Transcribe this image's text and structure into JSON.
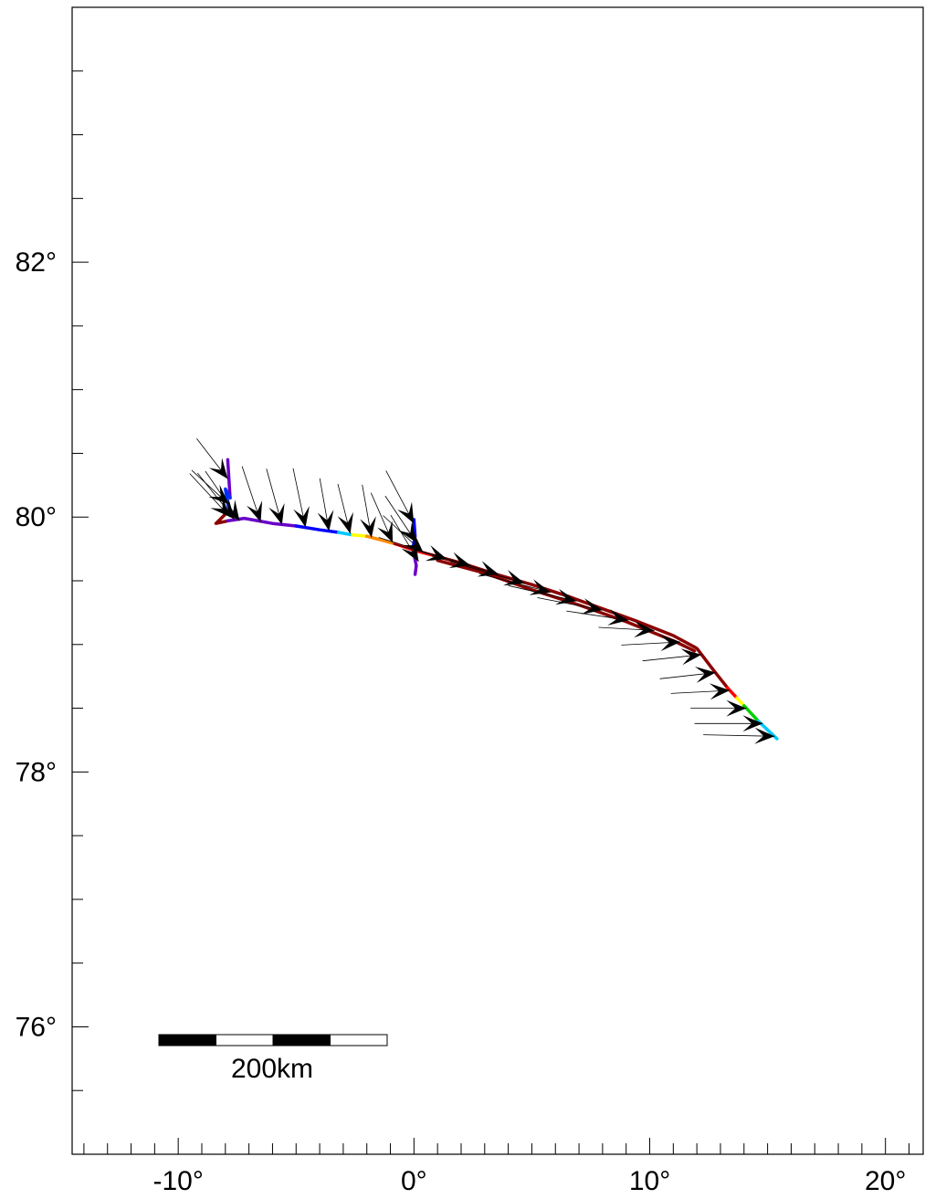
{
  "map": {
    "x_axis": {
      "unit": "°",
      "range": [
        -14.5,
        21.6
      ],
      "major_ticks": [
        -10,
        0,
        10,
        20
      ],
      "major_labels": [
        "-10°",
        "0°",
        "10°",
        "20°"
      ],
      "minor_step": 1
    },
    "y_axis": {
      "unit": "°",
      "range": [
        75.0,
        84.0
      ],
      "major_ticks": [
        76,
        78,
        80,
        82
      ],
      "major_labels": [
        "76°",
        "78°",
        "80°",
        "82°"
      ],
      "minor_step": 0.5
    },
    "scale_bar": {
      "label": "200km",
      "segments": 4,
      "colors": [
        "#000000",
        "#ffffff",
        "#000000",
        "#ffffff"
      ]
    },
    "track": {
      "color_scale": [
        "#8b0000",
        "#ff0000",
        "#ff8c00",
        "#ffff00",
        "#00d000",
        "#00c8ff",
        "#0000ff",
        "#6a00c8"
      ],
      "segments": [
        {
          "color": "#6a00c8",
          "points": [
            [
              -7.9,
              80.45
            ],
            [
              -7.85,
              80.3
            ],
            [
              -7.8,
              80.15
            ]
          ]
        },
        {
          "color": "#0030ff",
          "points": [
            [
              -7.8,
              80.15
            ],
            [
              -8.0,
              80.22
            ],
            [
              -7.85,
              80.05
            ]
          ]
        },
        {
          "color": "#8b0000",
          "points": [
            [
              -7.85,
              80.05
            ],
            [
              -8.4,
              79.95
            ],
            [
              -7.9,
              79.97
            ]
          ]
        },
        {
          "color": "#6a00c8",
          "points": [
            [
              -7.9,
              79.97
            ],
            [
              -7.2,
              79.99
            ],
            [
              -6.0,
              79.95
            ],
            [
              -5.0,
              79.93
            ]
          ]
        },
        {
          "color": "#0000ff",
          "points": [
            [
              -5.0,
              79.93
            ],
            [
              -4.0,
              79.9
            ],
            [
              -3.2,
              79.88
            ]
          ]
        },
        {
          "color": "#00c8ff",
          "points": [
            [
              -3.2,
              79.88
            ],
            [
              -2.6,
              79.86
            ]
          ]
        },
        {
          "color": "#ffff00",
          "points": [
            [
              -2.6,
              79.86
            ],
            [
              -2.0,
              79.85
            ]
          ]
        },
        {
          "color": "#ff8c00",
          "points": [
            [
              -2.0,
              79.85
            ],
            [
              -1.4,
              79.82
            ],
            [
              -0.8,
              79.79
            ]
          ]
        },
        {
          "color": "#0000ff",
          "points": [
            [
              0.0,
              79.98
            ],
            [
              0.05,
              79.85
            ],
            [
              -0.05,
              79.75
            ]
          ]
        },
        {
          "color": "#6a00c8",
          "points": [
            [
              -0.05,
              79.75
            ],
            [
              0.1,
              79.62
            ],
            [
              0.05,
              79.55
            ]
          ]
        },
        {
          "color": "#ff0000",
          "points": [
            [
              -0.8,
              79.79
            ],
            [
              0.0,
              79.74
            ],
            [
              0.8,
              79.7
            ]
          ]
        },
        {
          "color": "#8b0000",
          "points": [
            [
              0.8,
              79.7
            ],
            [
              2.0,
              79.64
            ],
            [
              3.5,
              79.55
            ],
            [
              5.0,
              79.47
            ],
            [
              6.5,
              79.38
            ],
            [
              8.0,
              79.28
            ],
            [
              9.5,
              79.18
            ],
            [
              11.0,
              79.07
            ],
            [
              12.0,
              78.97
            ],
            [
              12.7,
              78.8
            ],
            [
              13.3,
              78.66
            ]
          ]
        },
        {
          "color": "#8b0000",
          "points": [
            [
              1.0,
              79.66
            ],
            [
              3.0,
              79.56
            ],
            [
              5.0,
              79.43
            ],
            [
              7.0,
              79.31
            ],
            [
              9.0,
              79.18
            ],
            [
              11.0,
              79.03
            ],
            [
              11.9,
              78.95
            ]
          ]
        },
        {
          "color": "#ff0000",
          "points": [
            [
              13.3,
              78.66
            ],
            [
              13.7,
              78.58
            ]
          ]
        },
        {
          "color": "#ffff00",
          "points": [
            [
              13.7,
              78.58
            ],
            [
              14.0,
              78.52
            ]
          ]
        },
        {
          "color": "#00d000",
          "points": [
            [
              14.0,
              78.52
            ],
            [
              14.3,
              78.46
            ],
            [
              14.6,
              78.4
            ]
          ]
        },
        {
          "color": "#00c8ff",
          "points": [
            [
              14.6,
              78.4
            ],
            [
              15.0,
              78.33
            ],
            [
              15.4,
              78.26
            ]
          ]
        }
      ]
    },
    "wind_vectors": [
      {
        "lon": -7.9,
        "lat": 80.3,
        "u": 1.0,
        "v": -1.3
      },
      {
        "lon": -7.85,
        "lat": 80.1,
        "u": 1.2,
        "v": -1.1
      },
      {
        "lon": -7.8,
        "lat": 80.0,
        "u": 1.3,
        "v": -1.4
      },
      {
        "lon": -7.6,
        "lat": 79.98,
        "u": 1.2,
        "v": -1.5
      },
      {
        "lon": -7.4,
        "lat": 79.97,
        "u": 1.1,
        "v": -1.6
      },
      {
        "lon": -6.5,
        "lat": 79.96,
        "u": 0.6,
        "v": -1.8
      },
      {
        "lon": -5.6,
        "lat": 79.94,
        "u": 0.5,
        "v": -1.8
      },
      {
        "lon": -4.6,
        "lat": 79.92,
        "u": 0.4,
        "v": -1.9
      },
      {
        "lon": -3.6,
        "lat": 79.89,
        "u": 0.3,
        "v": -1.7
      },
      {
        "lon": -2.7,
        "lat": 79.87,
        "u": 0.4,
        "v": -1.6
      },
      {
        "lon": -1.8,
        "lat": 79.84,
        "u": 0.3,
        "v": -1.7
      },
      {
        "lon": -0.9,
        "lat": 79.8,
        "u": 0.7,
        "v": -1.6
      },
      {
        "lon": 0.0,
        "lat": 79.95,
        "u": 0.9,
        "v": -1.7
      },
      {
        "lon": 0.1,
        "lat": 79.8,
        "u": 1.0,
        "v": -1.5
      },
      {
        "lon": 0.2,
        "lat": 79.65,
        "u": 0.9,
        "v": -1.5
      },
      {
        "lon": 0.4,
        "lat": 79.72,
        "u": 1.3,
        "v": -1.2
      },
      {
        "lon": 1.4,
        "lat": 79.67,
        "u": 2.2,
        "v": -0.7
      },
      {
        "lon": 2.4,
        "lat": 79.62,
        "u": 2.5,
        "v": -0.7
      },
      {
        "lon": 3.6,
        "lat": 79.55,
        "u": 2.4,
        "v": -0.7
      },
      {
        "lon": 4.7,
        "lat": 79.48,
        "u": 2.4,
        "v": -0.7
      },
      {
        "lon": 5.8,
        "lat": 79.41,
        "u": 2.3,
        "v": -0.6
      },
      {
        "lon": 6.9,
        "lat": 79.34,
        "u": 2.2,
        "v": -0.5
      },
      {
        "lon": 8.0,
        "lat": 79.27,
        "u": 2.1,
        "v": -0.4
      },
      {
        "lon": 9.1,
        "lat": 79.19,
        "u": 2.0,
        "v": -0.3
      },
      {
        "lon": 10.2,
        "lat": 79.11,
        "u": 1.8,
        "v": -0.1
      },
      {
        "lon": 11.3,
        "lat": 79.02,
        "u": 1.9,
        "v": 0.1
      },
      {
        "lon": 12.2,
        "lat": 78.92,
        "u": 1.9,
        "v": 0.2
      },
      {
        "lon": 12.8,
        "lat": 78.78,
        "u": 1.8,
        "v": 0.2
      },
      {
        "lon": 13.4,
        "lat": 78.64,
        "u": 1.9,
        "v": 0.1
      },
      {
        "lon": 14.1,
        "lat": 78.5,
        "u": 1.8,
        "v": 0.0
      },
      {
        "lon": 14.8,
        "lat": 78.38,
        "u": 2.2,
        "v": 0.0
      },
      {
        "lon": 15.3,
        "lat": 78.28,
        "u": 2.3,
        "v": -0.05
      }
    ]
  }
}
